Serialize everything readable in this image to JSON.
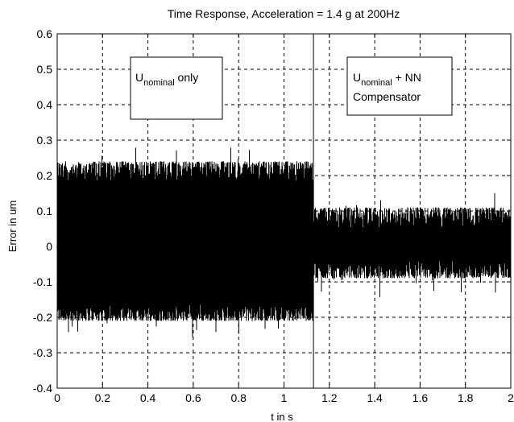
{
  "chart_data": {
    "type": "line",
    "title": "Time Response, Acceleration = 1.4 g at 200Hz",
    "xlabel": "t in s",
    "ylabel": "Error in um",
    "xlim": [
      0,
      2
    ],
    "ylim": [
      -0.4,
      0.6
    ],
    "xticks": [
      0,
      0.2,
      0.4,
      0.6,
      0.8,
      1,
      1.2,
      1.4,
      1.6,
      1.8,
      2
    ],
    "yticks": [
      -0.4,
      -0.3,
      -0.2,
      -0.1,
      0,
      0.1,
      0.2,
      0.3,
      0.4,
      0.5,
      0.6
    ],
    "xtick_labels": [
      "0",
      "0.2",
      "0.4",
      "0.6",
      "0.8",
      "1",
      "1.2",
      "1.4",
      "1.6",
      "1.8",
      "2"
    ],
    "ytick_labels": [
      "-0.4",
      "-0.3",
      "-0.2",
      "-0.1",
      "0",
      "0.1",
      "0.2",
      "0.3",
      "0.4",
      "0.5",
      "0.6"
    ],
    "grid": true,
    "grid_style": "dashed",
    "series_color": "#000000",
    "switch_time": 1.13,
    "segments": [
      {
        "t_start": 0,
        "t_end": 1.13,
        "upper_envelope": 0.24,
        "lower_envelope": -0.21,
        "peak_max": 0.28,
        "peak_min": -0.26
      },
      {
        "t_start": 1.13,
        "t_end": 2,
        "upper_envelope": 0.11,
        "lower_envelope": -0.09,
        "peak_max": 0.17,
        "peak_min": -0.15
      }
    ],
    "annotations": [
      {
        "text": "U",
        "subscript": "nominal",
        "suffix": " only"
      },
      {
        "text": "U",
        "subscript": "nominal",
        "suffix": " + NN",
        "line2": "Compensator"
      }
    ]
  }
}
